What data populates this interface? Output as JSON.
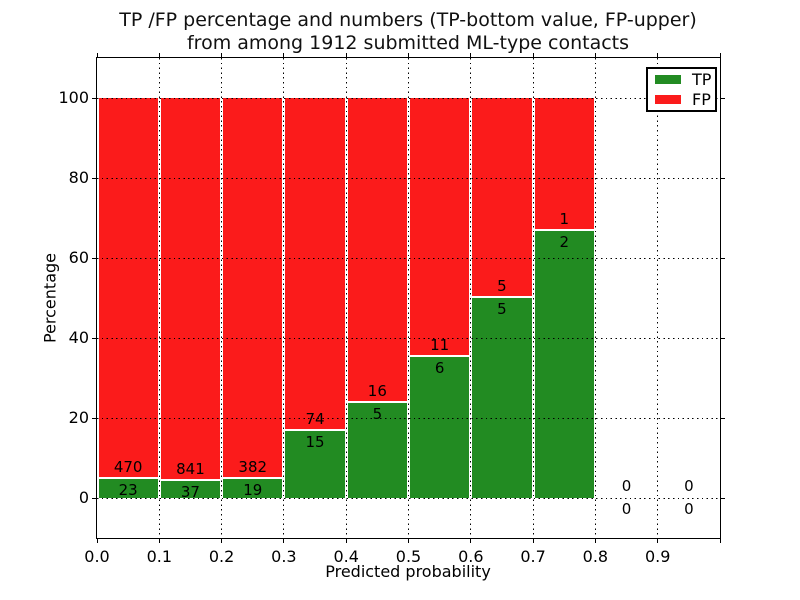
{
  "chart_data": {
    "type": "bar",
    "stacked": true,
    "normalized": "percent-of-bin-total",
    "title_line1": "TP /FP percentage and numbers (TP-bottom value, FP-upper)",
    "title_line2": "from among 1912 submitted ML-type contacts",
    "title": "TP /FP percentage and numbers (TP-bottom value, FP-upper)\nfrom among 1912 submitted ML-type contacts",
    "xlabel": "Predicted probability",
    "ylabel": "Percentage",
    "xlim": [
      0.0,
      1.0
    ],
    "ylim": [
      -10,
      110
    ],
    "bin_width": 0.1,
    "categories": [
      "0.0-0.1",
      "0.1-0.2",
      "0.2-0.3",
      "0.3-0.4",
      "0.4-0.5",
      "0.5-0.6",
      "0.6-0.7",
      "0.7-0.8",
      "0.8-0.9",
      "0.9-1.0"
    ],
    "xtick_labels": [
      "0.0",
      "0.1",
      "0.2",
      "0.3",
      "0.4",
      "0.5",
      "0.6",
      "0.7",
      "0.8",
      "0.9"
    ],
    "ytick_values": [
      0,
      20,
      40,
      60,
      80,
      100
    ],
    "series": [
      {
        "name": "TP",
        "color": "#228b22",
        "values": [
          23,
          37,
          19,
          15,
          5,
          6,
          5,
          2,
          0,
          0
        ]
      },
      {
        "name": "FP",
        "color": "#fb1b1b",
        "values": [
          470,
          841,
          382,
          74,
          16,
          11,
          5,
          1,
          0,
          0
        ]
      }
    ],
    "tp_percent_per_bin": [
      4.67,
      4.21,
      4.74,
      16.85,
      23.81,
      35.29,
      50.0,
      66.67,
      null,
      null
    ],
    "total_submitted": 1912,
    "legend": {
      "position": "upper right",
      "entries": [
        "TP",
        "FP"
      ]
    },
    "grid": true,
    "grid_style": "dotted",
    "bar_edge_color": "#ffffff"
  }
}
